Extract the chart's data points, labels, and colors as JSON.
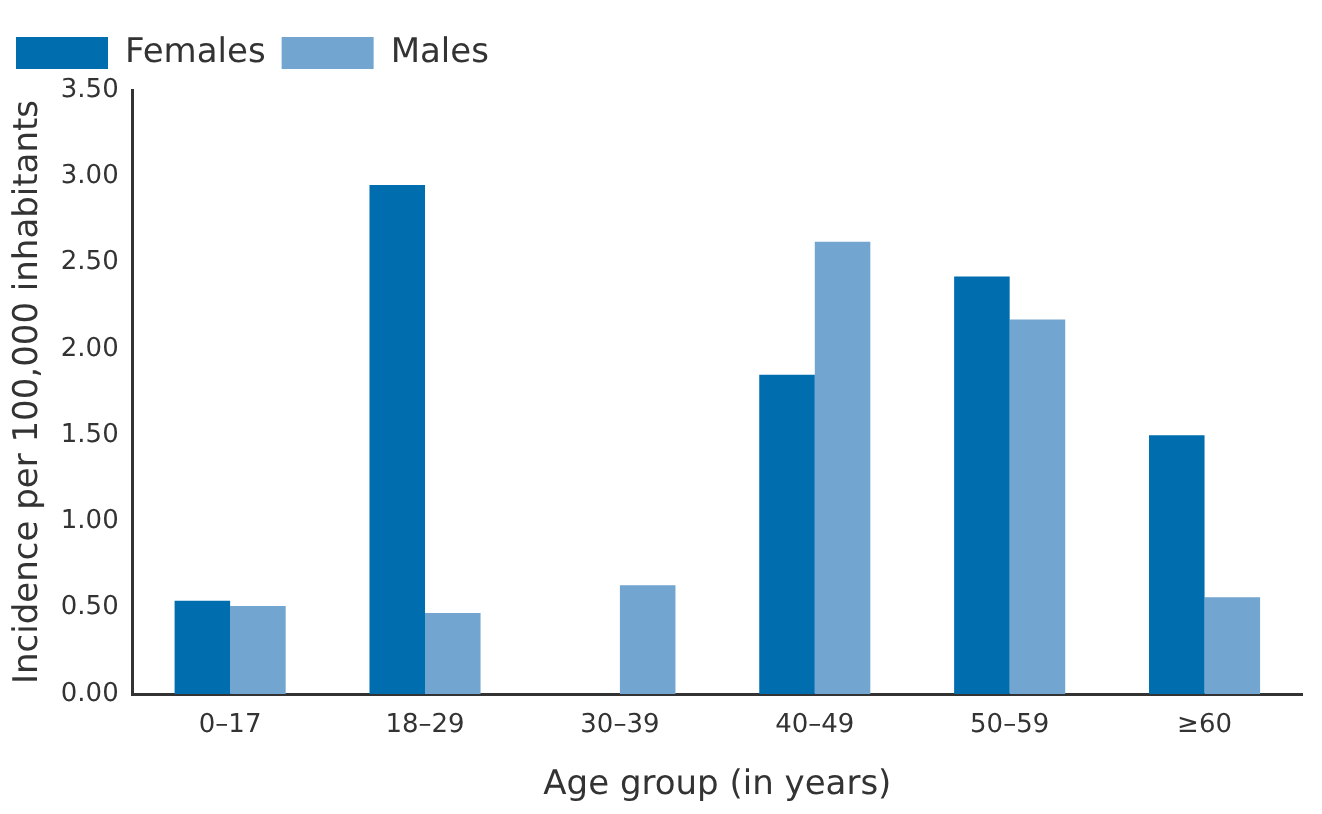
{
  "chart_data": {
    "type": "bar",
    "xlabel": "Age group (in years)",
    "ylabel": "Incidence per 100,000 inhabitants",
    "categories": [
      "0–17",
      "18–29",
      "30–39",
      "40–49",
      "50–59",
      "≥60"
    ],
    "series": [
      {
        "name": "Females",
        "color": "#006eae",
        "values": [
          0.54,
          2.95,
          0,
          1.85,
          2.42,
          1.5
        ]
      },
      {
        "name": "Males",
        "color": "#72a5d0",
        "values": [
          0.51,
          0.47,
          0.63,
          2.62,
          2.17,
          0.56
        ]
      }
    ],
    "ylim": [
      0,
      3.5
    ],
    "yticks": [
      {
        "value": 0,
        "label": "0.00"
      },
      {
        "value": 0.5,
        "label": "0.50"
      },
      {
        "value": 1,
        "label": "1.00"
      },
      {
        "value": 1.5,
        "label": "1.50"
      },
      {
        "value": 2,
        "label": "2.00"
      },
      {
        "value": 2.5,
        "label": "2.50"
      },
      {
        "value": 3,
        "label": "3.00"
      },
      {
        "value": 3.5,
        "label": "3.50"
      }
    ],
    "grid": false,
    "legend": "top left"
  }
}
